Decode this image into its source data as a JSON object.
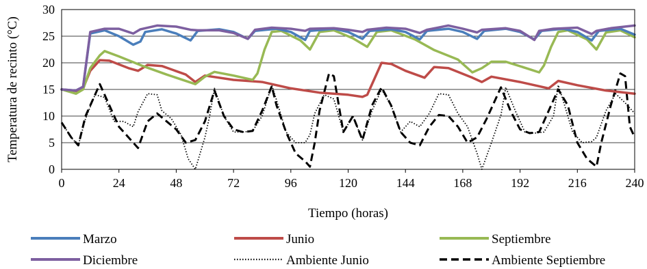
{
  "chart_data": {
    "type": "line",
    "title": "",
    "xlabel": "Tiempo (horas)",
    "ylabel": "Temperatura de recinto (°C)",
    "xlim": [
      0,
      240
    ],
    "ylim": [
      0,
      30
    ],
    "x_ticks": [
      "0",
      "24",
      "48",
      "72",
      "96",
      "120",
      "144",
      "168",
      "192",
      "216",
      "240"
    ],
    "y_ticks": [
      "0",
      "5",
      "10",
      "15",
      "20",
      "25",
      "30"
    ],
    "grid": "horizontal",
    "legend_position": "bottom",
    "series": [
      {
        "name": "Marzo",
        "color": "#4a7ebb",
        "style": "solid",
        "points": [
          [
            0,
            15
          ],
          [
            6,
            14.8
          ],
          [
            9,
            15.5
          ],
          [
            12,
            25.5
          ],
          [
            18,
            26.1
          ],
          [
            24,
            25
          ],
          [
            30,
            23.4
          ],
          [
            33,
            24
          ],
          [
            35,
            25.8
          ],
          [
            42,
            26.3
          ],
          [
            48,
            25.5
          ],
          [
            54,
            24.2
          ],
          [
            57,
            26
          ],
          [
            66,
            26.3
          ],
          [
            72,
            25.8
          ],
          [
            78,
            24.5
          ],
          [
            81,
            26
          ],
          [
            90,
            26.4
          ],
          [
            96,
            25.8
          ],
          [
            102,
            24.3
          ],
          [
            104,
            26
          ],
          [
            114,
            26.4
          ],
          [
            120,
            25.8
          ],
          [
            126,
            24.5
          ],
          [
            129,
            26
          ],
          [
            138,
            26.3
          ],
          [
            144,
            25.8
          ],
          [
            150,
            24.4
          ],
          [
            153,
            26
          ],
          [
            162,
            26.4
          ],
          [
            168,
            25.8
          ],
          [
            174,
            24.5
          ],
          [
            177,
            26
          ],
          [
            186,
            26.4
          ],
          [
            192,
            25.8
          ],
          [
            198,
            24.4
          ],
          [
            201,
            26
          ],
          [
            210,
            26.4
          ],
          [
            216,
            25.8
          ],
          [
            222,
            24.2
          ],
          [
            225,
            26
          ],
          [
            234,
            26.4
          ],
          [
            240,
            25.3
          ]
        ]
      },
      {
        "name": "Junio",
        "color": "#be4b48",
        "style": "solid",
        "points": [
          [
            0,
            15
          ],
          [
            6,
            14.7
          ],
          [
            9,
            15.2
          ],
          [
            12,
            18.5
          ],
          [
            16,
            20.5
          ],
          [
            20,
            20.4
          ],
          [
            28,
            19
          ],
          [
            32,
            18.5
          ],
          [
            36,
            19.6
          ],
          [
            42,
            19.4
          ],
          [
            52,
            17.8
          ],
          [
            56,
            16.4
          ],
          [
            60,
            17.6
          ],
          [
            72,
            16.8
          ],
          [
            84,
            16.4
          ],
          [
            96,
            15.2
          ],
          [
            108,
            14.4
          ],
          [
            120,
            14
          ],
          [
            126,
            13.6
          ],
          [
            128,
            14
          ],
          [
            131,
            17
          ],
          [
            134,
            20
          ],
          [
            138,
            19.8
          ],
          [
            144,
            18.5
          ],
          [
            152,
            17.2
          ],
          [
            156,
            19.2
          ],
          [
            162,
            19
          ],
          [
            172,
            17.2
          ],
          [
            176,
            16.4
          ],
          [
            180,
            17.4
          ],
          [
            192,
            16.4
          ],
          [
            204,
            15.2
          ],
          [
            208,
            16.6
          ],
          [
            216,
            15.8
          ],
          [
            228,
            14.8
          ],
          [
            240,
            14.2
          ]
        ]
      },
      {
        "name": "Septiembre",
        "color": "#98b954",
        "style": "solid",
        "points": [
          [
            0,
            15
          ],
          [
            6,
            14.2
          ],
          [
            9,
            15
          ],
          [
            12,
            19
          ],
          [
            16,
            21.4
          ],
          [
            18,
            22.2
          ],
          [
            24,
            21.2
          ],
          [
            34,
            19.4
          ],
          [
            44,
            17.8
          ],
          [
            56,
            16
          ],
          [
            60,
            17.4
          ],
          [
            64,
            18.3
          ],
          [
            72,
            17.6
          ],
          [
            80,
            16.8
          ],
          [
            82,
            18
          ],
          [
            85,
            22.5
          ],
          [
            88,
            25.8
          ],
          [
            92,
            26
          ],
          [
            100,
            24.2
          ],
          [
            104,
            22.5
          ],
          [
            108,
            25.8
          ],
          [
            114,
            26.1
          ],
          [
            122,
            24.6
          ],
          [
            128,
            23
          ],
          [
            132,
            25.8
          ],
          [
            138,
            26.1
          ],
          [
            148,
            24.4
          ],
          [
            156,
            22.4
          ],
          [
            166,
            20.6
          ],
          [
            172,
            18.2
          ],
          [
            176,
            19
          ],
          [
            180,
            20.2
          ],
          [
            186,
            20.2
          ],
          [
            196,
            18.8
          ],
          [
            200,
            18.2
          ],
          [
            202,
            19.5
          ],
          [
            205,
            23
          ],
          [
            208,
            25.8
          ],
          [
            212,
            26.1
          ],
          [
            220,
            24.4
          ],
          [
            224,
            22.5
          ],
          [
            228,
            25.7
          ],
          [
            234,
            26.1
          ],
          [
            240,
            24.8
          ]
        ]
      },
      {
        "name": "Diciembre",
        "color": "#7d5fa0",
        "style": "solid",
        "points": [
          [
            0,
            15
          ],
          [
            6,
            14.8
          ],
          [
            9,
            15.5
          ],
          [
            12,
            25.8
          ],
          [
            18,
            26.4
          ],
          [
            24,
            26.4
          ],
          [
            28,
            25.8
          ],
          [
            30,
            25.5
          ],
          [
            33,
            26.3
          ],
          [
            40,
            27
          ],
          [
            48,
            26.8
          ],
          [
            54,
            26.2
          ],
          [
            57,
            26.1
          ],
          [
            66,
            26.1
          ],
          [
            72,
            25.6
          ],
          [
            78,
            24.5
          ],
          [
            81,
            26.2
          ],
          [
            88,
            26.6
          ],
          [
            96,
            26.4
          ],
          [
            102,
            26
          ],
          [
            104,
            26.4
          ],
          [
            114,
            26.5
          ],
          [
            120,
            26.2
          ],
          [
            126,
            25.8
          ],
          [
            128,
            26.2
          ],
          [
            136,
            26.6
          ],
          [
            144,
            26.4
          ],
          [
            150,
            25.6
          ],
          [
            153,
            26.2
          ],
          [
            162,
            27
          ],
          [
            168,
            26.4
          ],
          [
            174,
            25.7
          ],
          [
            176,
            26.2
          ],
          [
            186,
            26.5
          ],
          [
            192,
            26
          ],
          [
            198,
            24.3
          ],
          [
            200,
            26
          ],
          [
            206,
            26.4
          ],
          [
            216,
            26.6
          ],
          [
            222,
            25.4
          ],
          [
            224,
            26
          ],
          [
            230,
            26.5
          ],
          [
            240,
            27
          ]
        ]
      },
      {
        "name": "Ambiente Junio",
        "color": "#000000",
        "style": "dotted",
        "points": [
          [
            0,
            8.8
          ],
          [
            4,
            6
          ],
          [
            7,
            4.5
          ],
          [
            10,
            9.5
          ],
          [
            14,
            14
          ],
          [
            18,
            13.5
          ],
          [
            22,
            9
          ],
          [
            26,
            9
          ],
          [
            30,
            8
          ],
          [
            32,
            10.8
          ],
          [
            36,
            14.2
          ],
          [
            40,
            14
          ],
          [
            42,
            11
          ],
          [
            46,
            9.5
          ],
          [
            50,
            6.5
          ],
          [
            53,
            2
          ],
          [
            56,
            0
          ],
          [
            60,
            6
          ],
          [
            62,
            10
          ],
          [
            64,
            15.2
          ],
          [
            68,
            10
          ],
          [
            72,
            7
          ],
          [
            76,
            7
          ],
          [
            80,
            7.2
          ],
          [
            84,
            10
          ],
          [
            88,
            15.8
          ],
          [
            90,
            13
          ],
          [
            94,
            7
          ],
          [
            98,
            5
          ],
          [
            102,
            5
          ],
          [
            104,
            6.5
          ],
          [
            106,
            10.5
          ],
          [
            110,
            14
          ],
          [
            114,
            13.2
          ],
          [
            118,
            7
          ],
          [
            122,
            10
          ],
          [
            126,
            5.5
          ],
          [
            130,
            11
          ],
          [
            134,
            15
          ],
          [
            138,
            12
          ],
          [
            142,
            7
          ],
          [
            146,
            9
          ],
          [
            150,
            8
          ],
          [
            154,
            10.5
          ],
          [
            158,
            14.2
          ],
          [
            162,
            14
          ],
          [
            166,
            10.5
          ],
          [
            170,
            8
          ],
          [
            174,
            3
          ],
          [
            176,
            0
          ],
          [
            180,
            5
          ],
          [
            184,
            10.2
          ],
          [
            186,
            15.4
          ],
          [
            190,
            11
          ],
          [
            194,
            7
          ],
          [
            198,
            6.8
          ],
          [
            202,
            7
          ],
          [
            206,
            10
          ],
          [
            208,
            15.8
          ],
          [
            210,
            13
          ],
          [
            214,
            7
          ],
          [
            218,
            5
          ],
          [
            222,
            5.2
          ],
          [
            224,
            6
          ],
          [
            228,
            11
          ],
          [
            232,
            14.2
          ],
          [
            236,
            12.5
          ],
          [
            240,
            10.5
          ]
        ]
      },
      {
        "name": "Ambiente Septiembre",
        "color": "#000000",
        "style": "dashed",
        "points": [
          [
            0,
            8.8
          ],
          [
            4,
            6
          ],
          [
            7,
            4.5
          ],
          [
            10,
            10
          ],
          [
            14,
            14
          ],
          [
            16,
            16
          ],
          [
            20,
            12
          ],
          [
            24,
            8
          ],
          [
            28,
            6
          ],
          [
            32,
            4
          ],
          [
            36,
            9
          ],
          [
            40,
            10.5
          ],
          [
            44,
            9
          ],
          [
            48,
            7.5
          ],
          [
            52,
            5
          ],
          [
            56,
            5.5
          ],
          [
            60,
            9
          ],
          [
            64,
            14.8
          ],
          [
            68,
            10
          ],
          [
            72,
            7.5
          ],
          [
            76,
            7
          ],
          [
            80,
            7.2
          ],
          [
            84,
            11
          ],
          [
            88,
            15.6
          ],
          [
            90,
            12
          ],
          [
            94,
            7
          ],
          [
            98,
            3
          ],
          [
            102,
            1.5
          ],
          [
            104,
            0.5
          ],
          [
            106,
            5
          ],
          [
            108,
            11
          ],
          [
            112,
            18
          ],
          [
            114,
            17.5
          ],
          [
            118,
            7
          ],
          [
            122,
            10
          ],
          [
            126,
            5.5
          ],
          [
            130,
            12
          ],
          [
            134,
            15.4
          ],
          [
            138,
            12
          ],
          [
            142,
            7
          ],
          [
            146,
            5
          ],
          [
            150,
            4.5
          ],
          [
            154,
            8
          ],
          [
            158,
            10.2
          ],
          [
            162,
            10
          ],
          [
            166,
            8
          ],
          [
            170,
            5
          ],
          [
            174,
            6
          ],
          [
            178,
            9.5
          ],
          [
            184,
            15.4
          ],
          [
            188,
            11
          ],
          [
            192,
            7.5
          ],
          [
            196,
            6.8
          ],
          [
            200,
            7
          ],
          [
            204,
            11
          ],
          [
            208,
            15
          ],
          [
            212,
            12
          ],
          [
            216,
            5
          ],
          [
            220,
            2
          ],
          [
            224,
            0.5
          ],
          [
            226,
            5
          ],
          [
            230,
            12
          ],
          [
            234,
            18
          ],
          [
            236,
            17.5
          ],
          [
            238,
            8
          ],
          [
            240,
            6
          ]
        ]
      }
    ]
  }
}
